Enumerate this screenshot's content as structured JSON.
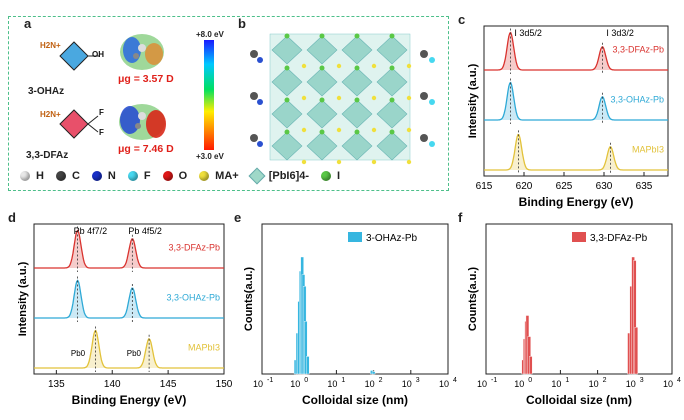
{
  "panels": {
    "a": "a",
    "b": "b",
    "c": "c",
    "d": "d",
    "e": "e",
    "f": "f"
  },
  "panel_a": {
    "mol1_name": "3-OHAz",
    "mol2_name": "3,3-DFAz",
    "mol1_dipole": "μg = 3.57 D",
    "mol2_dipole": "μg = 7.46 D",
    "h2n_label": "H2N+",
    "oh_label": "OH",
    "f_label": "F",
    "colorbar_top": "+8.0 eV",
    "colorbar_bottom": "+3.0 eV",
    "colorbar_colors": [
      "#1a1aff",
      "#00c8ff",
      "#00e060",
      "#ffee00",
      "#ff8800",
      "#ff1a00"
    ]
  },
  "legend": {
    "items": [
      {
        "label": "H",
        "color": "#e8e8e8"
      },
      {
        "label": "C",
        "color": "#444444"
      },
      {
        "label": "N",
        "color": "#1830c8"
      },
      {
        "label": "F",
        "color": "#46d8f0"
      },
      {
        "label": "O",
        "color": "#e01818"
      },
      {
        "label": "MA+",
        "color": "#f0e03c"
      },
      {
        "label": "[PbI6]4-",
        "color": "#9fd8c8"
      },
      {
        "label": "I",
        "color": "#5ac846"
      }
    ]
  },
  "chart_data": [
    {
      "id": "c",
      "type": "line",
      "xlabel": "Binding Energy (eV)",
      "ylabel": "Intensity (a.u.)",
      "xlim": [
        615,
        638
      ],
      "xticks": [
        615,
        620,
        625,
        630,
        635
      ],
      "annotations": [
        "I 3d5/2",
        "I 3d3/2"
      ],
      "series": [
        {
          "name": "3,3-DFAz-Pb",
          "color": "#d9332f",
          "peaks": [
            {
              "x": 618.3,
              "h": 1.0
            },
            {
              "x": 629.8,
              "h": 0.62
            }
          ],
          "offset": 2
        },
        {
          "name": "3,3-OHAz-Pb",
          "color": "#2ea9d6",
          "peaks": [
            {
              "x": 618.3,
              "h": 1.0
            },
            {
              "x": 629.8,
              "h": 0.62
            }
          ],
          "offset": 1
        },
        {
          "name": "MAPbI3",
          "color": "#e2c23a",
          "peaks": [
            {
              "x": 619.3,
              "h": 0.95
            },
            {
              "x": 630.8,
              "h": 0.62
            }
          ],
          "offset": 0
        }
      ]
    },
    {
      "id": "d",
      "type": "line",
      "xlabel": "Binding Energy (eV)",
      "ylabel": "Intensity (a.u.)",
      "xlim": [
        133,
        150
      ],
      "xticks": [
        135,
        140,
        145,
        150
      ],
      "annotations": [
        "Pb 4f7/2",
        "Pb 4f5/2",
        "Pb0",
        "Pb0"
      ],
      "series": [
        {
          "name": "3,3-DFAz-Pb",
          "color": "#d9332f",
          "peaks": [
            {
              "x": 136.9,
              "h": 1.0
            },
            {
              "x": 141.8,
              "h": 0.78
            }
          ],
          "offset": 2
        },
        {
          "name": "3,3-OHAz-Pb",
          "color": "#2ea9d6",
          "peaks": [
            {
              "x": 136.9,
              "h": 1.0
            },
            {
              "x": 141.8,
              "h": 0.8
            }
          ],
          "offset": 1
        },
        {
          "name": "MAPbI3",
          "color": "#e2c23a",
          "peaks": [
            {
              "x": 138.5,
              "h": 1.0
            },
            {
              "x": 143.3,
              "h": 0.78
            }
          ],
          "offset": 0
        }
      ]
    },
    {
      "id": "e",
      "type": "bar",
      "xlabel": "Colloidal size (nm)",
      "ylabel": "Counts(a.u.)",
      "xscale": "log",
      "xlim": [
        0.1,
        10000
      ],
      "xticks": [
        "10-1",
        "100",
        "101",
        "102",
        "103",
        "104"
      ],
      "legend": "3-OHAz-Pb",
      "color": "#36b6e0",
      "x": [
        0.8,
        0.9,
        1.0,
        1.1,
        1.2,
        1.3,
        1.4,
        1.5,
        1.7,
        90,
        100
      ],
      "values": [
        0.12,
        0.35,
        0.62,
        0.88,
        1.0,
        0.85,
        0.75,
        0.45,
        0.15,
        0.03,
        0.02
      ]
    },
    {
      "id": "f",
      "type": "bar",
      "xlabel": "Colloidal size (nm)",
      "ylabel": "Counts(a.u.)",
      "xscale": "log",
      "xlim": [
        0.1,
        10000
      ],
      "xticks": [
        "10-1",
        "100",
        "101",
        "102",
        "103",
        "104"
      ],
      "legend": "3,3-DFAz-Pb",
      "color": "#e05050",
      "x": [
        1.0,
        1.1,
        1.2,
        1.3,
        1.45,
        1.6,
        700,
        800,
        900,
        1000,
        1100
      ],
      "values": [
        0.12,
        0.3,
        0.45,
        0.5,
        0.32,
        0.15,
        0.35,
        0.75,
        1.0,
        0.97,
        0.4
      ]
    }
  ]
}
